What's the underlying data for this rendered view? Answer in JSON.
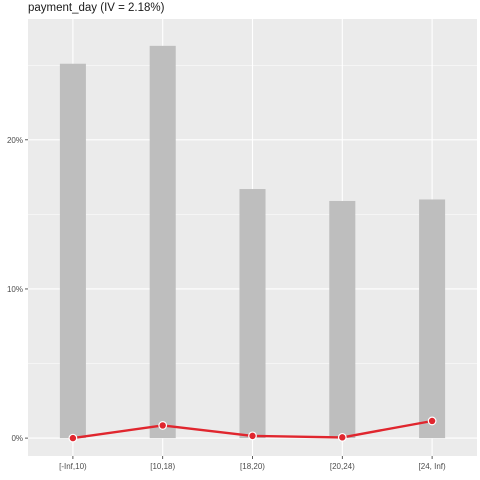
{
  "chart_data": {
    "type": "bar",
    "title": "payment_day (IV = 2.18%)",
    "xlabel": "",
    "ylabel": "",
    "categories": [
      "[-Inf,10)",
      "[10,18)",
      "[18,20)",
      "[20,24)",
      "[24, Inf)"
    ],
    "series": [
      {
        "type": "bar",
        "values": [
          25.1,
          26.3,
          16.7,
          15.9,
          16.0
        ]
      },
      {
        "type": "line",
        "values": [
          0.0,
          0.85,
          0.15,
          0.05,
          1.15
        ]
      }
    ],
    "ylim": [
      -1.2,
      28.1
    ],
    "yticks": [
      0,
      10,
      20
    ],
    "ytick_labels": [
      "0%",
      "10%",
      "20%"
    ],
    "grid": true,
    "colors": {
      "bar": "#bebebe",
      "line": "#e0262e",
      "panel": "#ebebeb",
      "grid": "#ffffff"
    }
  }
}
